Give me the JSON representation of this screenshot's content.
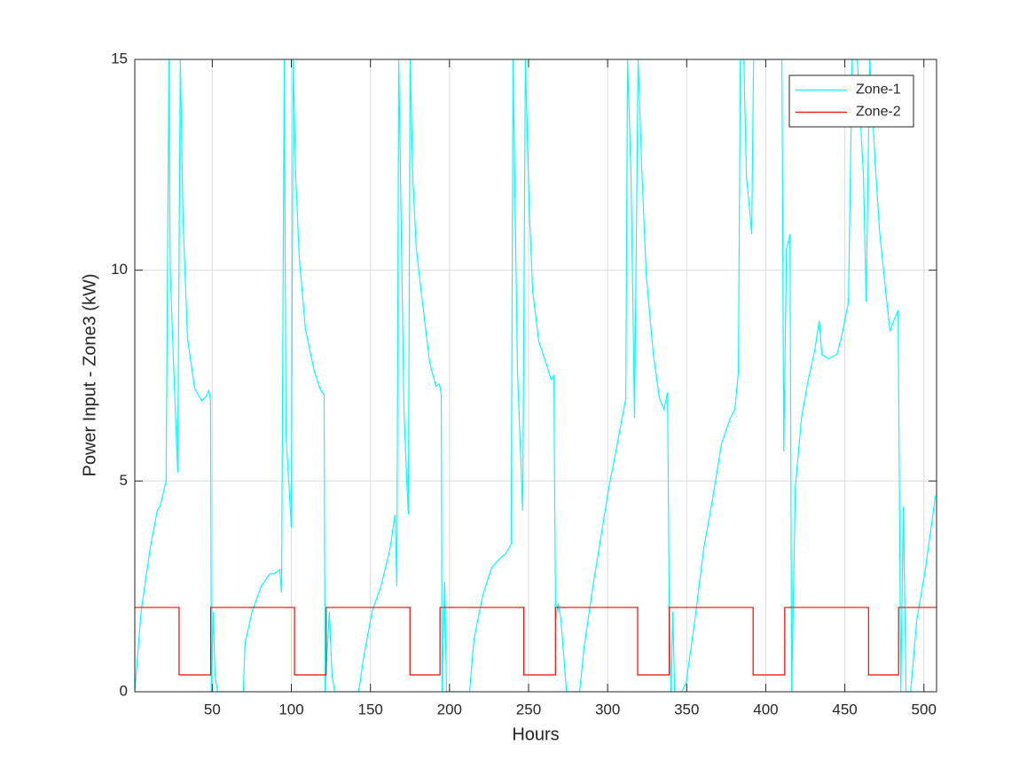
{
  "chart_data": {
    "type": "line",
    "xlabel": "Hours",
    "ylabel": "Power Input - Zone3 (kW)",
    "xlim": [
      1,
      508
    ],
    "ylim": [
      0,
      15
    ],
    "xticks": [
      50,
      100,
      150,
      200,
      250,
      300,
      350,
      400,
      450,
      500
    ],
    "yticks": [
      0,
      5,
      10,
      15
    ],
    "grid": true,
    "legend": "northeast",
    "series": [
      {
        "name": "Zone-1",
        "color": "#00ffff",
        "x": [
          1,
          5,
          10.7,
          15.2,
          17,
          20.8,
          22.6,
          23.4,
          25.3,
          28.1,
          29.8,
          31.5,
          34.3,
          38.8,
          43.3,
          46,
          47.8,
          48.9,
          49.4,
          50.6,
          51.7,
          53.4,
          69.6,
          70.7,
          75.2,
          80.9,
          86.5,
          89.3,
          92.6,
          93.8,
          95.5,
          96.6,
          100,
          101.1,
          102.8,
          105,
          108.9,
          114.5,
          118.5,
          120.7,
          121.3,
          124,
          125.7,
          127.4,
          142.6,
          145.4,
          151,
          156.6,
          162.2,
          165.6,
          166.7,
          167.9,
          171.2,
          172.9,
          174,
          175.1,
          176.8,
          179,
          183.5,
          187.5,
          191.4,
          193.7,
          194.8,
          195.3,
          197,
          198.1,
          212.7,
          215.5,
          221.1,
          226.7,
          232.9,
          235.1,
          239,
          240.2,
          243,
          246.3,
          248,
          250.3,
          252.6,
          256.5,
          261,
          264.3,
          266,
          267.1,
          268.8,
          270.5,
          274,
          282.3,
          285.1,
          290.7,
          296.3,
          300.8,
          304.7,
          309.2,
          311.5,
          312.6,
          314.8,
          317,
          319.3,
          321.6,
          324.4,
          328.9,
          332.8,
          335.6,
          337.9,
          339,
          340.1,
          341.2,
          342.4,
          346.8,
          349.6,
          355.2,
          360.8,
          366.5,
          372.1,
          377.7,
          380.5,
          382.7,
          383.9,
          386.1,
          387.8,
          390,
          391.1,
          392.3,
          410.2,
          411.4,
          413.1,
          415.3,
          416.4,
          418.7,
          422.6,
          426.6,
          431,
          433.8,
          435.5,
          439.4,
          445,
          447.8,
          452.3,
          454.6,
          457.9,
          461.8,
          463.5,
          465.7,
          469.1,
          471.9,
          475.8,
          478.6,
          481.4,
          483.7,
          485.4,
          487,
          488.7,
          491.6,
          495.5,
          501.1,
          507.3
        ],
        "values": [
          0,
          1.9,
          3.4,
          4.3,
          4.4,
          5.0,
          15,
          10,
          8,
          5.2,
          15,
          11.2,
          8.4,
          7.2,
          6.9,
          7.0,
          7.15,
          6.9,
          0,
          1.9,
          0.4,
          0,
          0,
          1.15,
          1.9,
          2.5,
          2.8,
          2.8,
          2.9,
          2.35,
          15,
          6.1,
          3.9,
          15,
          12.2,
          10.3,
          8.6,
          7.6,
          7.15,
          7.05,
          0,
          1.9,
          0.4,
          0,
          0,
          0.75,
          1.9,
          2.5,
          3.35,
          4.2,
          2.5,
          15,
          6.7,
          5.05,
          4.2,
          15,
          12.2,
          10.5,
          9.05,
          7.8,
          7.25,
          7.3,
          7.05,
          0,
          2.6,
          0,
          0,
          1.25,
          2.3,
          2.95,
          3.2,
          3.25,
          3.5,
          15,
          7.6,
          4.3,
          15,
          11.6,
          9.5,
          8.3,
          7.8,
          7.4,
          7.5,
          1.7,
          2.1,
          1.7,
          0,
          0,
          1.05,
          2.5,
          3.8,
          4.85,
          5.6,
          6.5,
          6.95,
          15,
          12.2,
          6.5,
          15,
          12.4,
          9.9,
          8,
          6.95,
          6.7,
          7.1,
          1.7,
          0,
          1.9,
          0,
          0,
          0.2,
          1.7,
          3.4,
          4.6,
          5.9,
          6.5,
          6.7,
          7.6,
          15,
          15,
          12.2,
          11.35,
          10.85,
          15,
          15,
          5.7,
          10.5,
          10.85,
          0,
          4.85,
          6.5,
          7.35,
          8.1,
          8.8,
          8,
          7.9,
          8,
          8.4,
          9.25,
          15,
          15,
          12.2,
          9.25,
          15,
          12.6,
          10.95,
          9.5,
          8.55,
          8.85,
          9.05,
          0,
          4.4,
          0,
          0,
          1.7,
          2.95,
          4.65
        ]
      },
      {
        "name": "Zone-2",
        "color": "#ff0000",
        "x": [
          1,
          29,
          29,
          49,
          49,
          102,
          102,
          122,
          122,
          175,
          175,
          194,
          194,
          247,
          247,
          267,
          267,
          319,
          319,
          339,
          339,
          392,
          392,
          412,
          412,
          465,
          465,
          484,
          484,
          508
        ],
        "values": [
          2,
          2,
          0.4,
          0.4,
          2,
          2,
          0.4,
          0.4,
          2,
          2,
          0.4,
          0.4,
          2,
          2,
          0.4,
          0.4,
          2,
          2,
          0.4,
          0.4,
          2,
          2,
          0.4,
          0.4,
          2,
          2,
          0.4,
          0.4,
          2,
          2
        ]
      }
    ]
  }
}
